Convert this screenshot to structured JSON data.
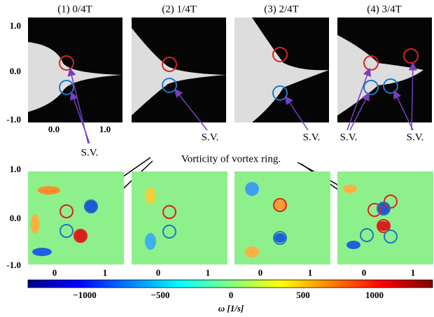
{
  "top_row": {
    "titles": [
      "(1) 0/4T",
      "(2) 1/4T",
      "(3) 2/4T",
      "(4) 3/4T"
    ],
    "y_ticks": [
      "1.0",
      "0.0",
      "-1.0"
    ],
    "x_ticks": [
      "0.0",
      "1.0"
    ],
    "labels": [
      "S.V.",
      "S.V.",
      "S.V.",
      "S.V.",
      "S.V."
    ]
  },
  "annotation": "Vorticity of vortex ring.",
  "bottom_row": {
    "y_ticks": [
      "1.0",
      "0.0",
      "-1.0"
    ],
    "x_ticks": [
      "0",
      "1",
      "0",
      "1",
      "0",
      "1",
      "0",
      "1"
    ]
  },
  "colorbar": {
    "ticks": [
      "−1000",
      "−500",
      "0",
      "500",
      "1000"
    ],
    "label": "ω [1/s]"
  }
}
